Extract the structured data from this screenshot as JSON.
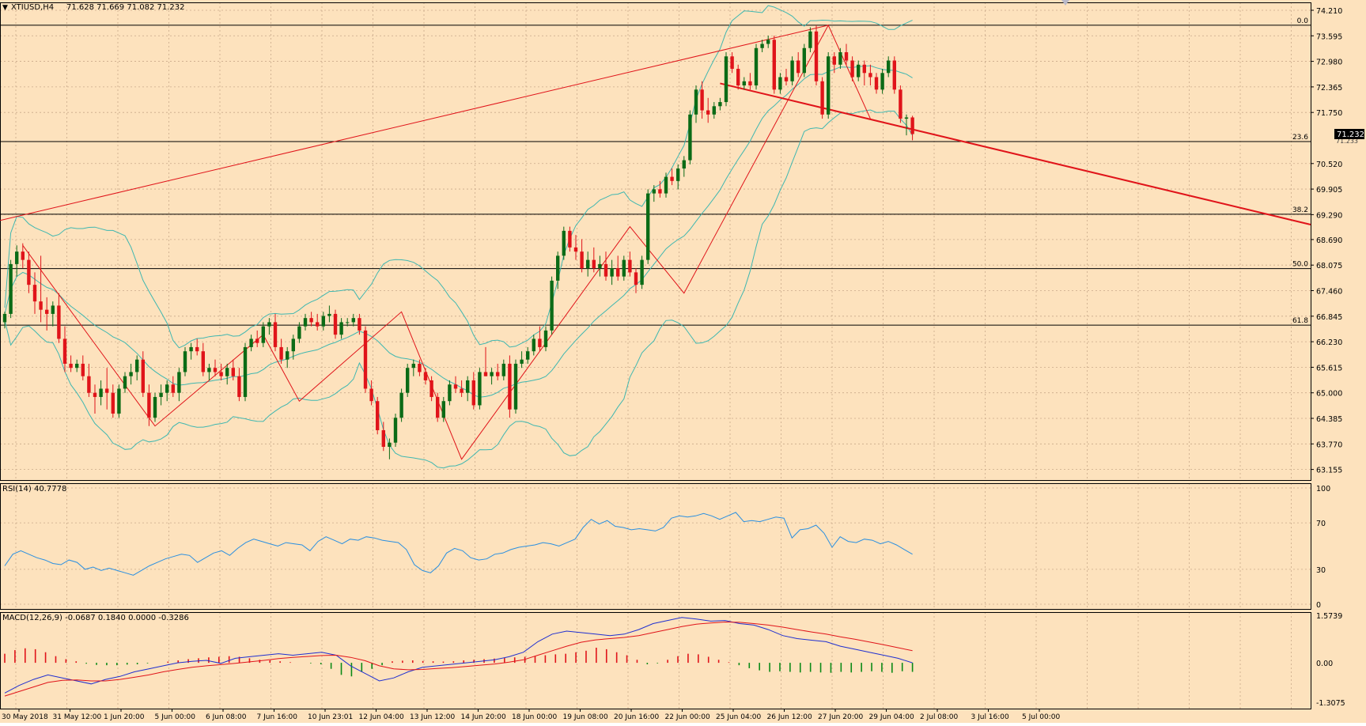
{
  "colors": {
    "background": "#fde2bd",
    "grid": "#c9a98a",
    "frame": "#000000",
    "bull_candle": "#0b6b16",
    "bear_candle": "#e0141a",
    "bollinger": "#3fb7b0",
    "zigzag": "#e0141a",
    "trendline": "#e0141a",
    "fib_line": "#000000",
    "rsi_line": "#2a8fe0",
    "macd_line": "#1f2fd0",
    "signal_line": "#e0141a",
    "hist_pos": "#e0141a",
    "hist_neg": "#0b8a16",
    "price_label_bg": "#000000",
    "price_label_text": "#ffffff"
  },
  "header": {
    "menu_arrow": "▼",
    "symbol_label": "XTIUSD,H4",
    "ohlc_label": "71.628 71.669 71.082 71.232"
  },
  "current_price": {
    "label": "71.232",
    "value": 71.232,
    "ghost_label": "71.233"
  },
  "price_axis": {
    "labels": [
      "74.210",
      "73.595",
      "72.980",
      "72.365",
      "71.750",
      "70.520",
      "69.905",
      "69.290",
      "68.690",
      "68.075",
      "67.460",
      "66.845",
      "66.230",
      "65.615",
      "65.000",
      "64.385",
      "63.770",
      "63.155"
    ],
    "values": [
      74.21,
      73.595,
      72.98,
      72.365,
      71.75,
      70.52,
      69.905,
      69.29,
      68.69,
      68.075,
      67.46,
      66.845,
      66.23,
      65.615,
      65.0,
      64.385,
      63.77,
      63.155
    ]
  },
  "fib_levels": [
    {
      "label": "0.0",
      "price": 73.85
    },
    {
      "label": "23.6",
      "price": 71.05
    },
    {
      "label": "38.2",
      "price": 69.3
    },
    {
      "label": "50.0",
      "price": 67.99
    },
    {
      "label": "61.8",
      "price": 66.63
    }
  ],
  "time_axis": {
    "labels": [
      "30 May 2018",
      "31 May 12:00",
      "1 Jun 20:00",
      "5 Jun 00:00",
      "6 Jun 08:00",
      "7 Jun 16:00",
      "10 Jun 23:01",
      "12 Jun 04:00",
      "13 Jun 12:00",
      "14 Jun 20:00",
      "18 Jun 00:00",
      "19 Jun 08:00",
      "20 Jun 16:00",
      "22 Jun 00:00",
      "25 Jun 04:00",
      "26 Jun 12:00",
      "27 Jun 20:00",
      "29 Jun 04:00",
      "2 Jul 08:00",
      "3 Jul 16:00",
      "5 Jul 00:00"
    ]
  },
  "rsi": {
    "label": "RSI(14) 40.7778",
    "axis_labels": [
      "100",
      "70",
      "30",
      "0"
    ],
    "axis_values": [
      100,
      70,
      30,
      0
    ],
    "series": [
      33,
      43,
      46,
      43,
      40,
      38,
      35,
      34,
      38,
      36,
      30,
      32,
      29,
      31,
      29,
      27,
      25,
      29,
      33,
      36,
      39,
      41,
      43,
      42,
      36,
      40,
      44,
      46,
      42,
      48,
      53,
      56,
      54,
      52,
      50,
      53,
      52,
      51,
      46,
      54,
      58,
      55,
      52,
      56,
      55,
      58,
      57,
      55,
      54,
      53,
      47,
      34,
      29,
      27,
      33,
      44,
      48,
      46,
      40,
      38,
      39,
      43,
      44,
      47,
      49,
      50,
      51,
      53,
      52,
      50,
      53,
      56,
      66,
      73,
      69,
      72,
      67,
      66,
      64,
      65,
      64,
      63,
      66,
      74,
      76,
      75,
      76,
      78,
      76,
      73,
      76,
      79,
      71,
      72,
      71,
      73,
      75,
      74,
      57,
      64,
      65,
      68,
      61,
      49,
      58,
      54,
      53,
      56,
      55,
      52,
      54,
      51,
      47,
      43
    ]
  },
  "macd": {
    "label": "MACD(12,26,9) -0.0687 0.1840 0.0000 -0.3286",
    "axis_labels": [
      "1.5739",
      "0.00",
      "-1.3075"
    ],
    "axis_values": [
      1.5739,
      0.0,
      -1.3075
    ],
    "macd_series": [
      -1.0,
      -0.75,
      -0.55,
      -0.4,
      -0.5,
      -0.6,
      -0.7,
      -0.55,
      -0.45,
      -0.3,
      -0.2,
      -0.1,
      0.0,
      0.05,
      0.08,
      -0.02,
      0.15,
      0.2,
      0.25,
      0.3,
      0.25,
      0.3,
      0.35,
      0.25,
      -0.1,
      -0.35,
      -0.6,
      -0.5,
      -0.3,
      -0.15,
      -0.1,
      -0.05,
      0.0,
      0.05,
      0.1,
      0.2,
      0.35,
      0.7,
      0.95,
      1.05,
      1.0,
      0.95,
      0.9,
      0.95,
      1.1,
      1.3,
      1.4,
      1.5,
      1.45,
      1.38,
      1.4,
      1.3,
      1.25,
      1.1,
      0.9,
      0.8,
      0.75,
      0.7,
      0.55,
      0.45,
      0.35,
      0.25,
      0.15,
      0.0
    ],
    "signal_series": [
      -1.1,
      -0.95,
      -0.8,
      -0.65,
      -0.58,
      -0.57,
      -0.6,
      -0.6,
      -0.55,
      -0.48,
      -0.4,
      -0.3,
      -0.22,
      -0.15,
      -0.1,
      -0.06,
      -0.02,
      0.03,
      0.08,
      0.14,
      0.18,
      0.21,
      0.24,
      0.25,
      0.18,
      0.07,
      -0.1,
      -0.2,
      -0.23,
      -0.22,
      -0.19,
      -0.16,
      -0.12,
      -0.08,
      -0.04,
      0.02,
      0.1,
      0.25,
      0.4,
      0.55,
      0.68,
      0.76,
      0.8,
      0.84,
      0.9,
      1.0,
      1.1,
      1.2,
      1.28,
      1.32,
      1.35,
      1.34,
      1.3,
      1.25,
      1.18,
      1.1,
      1.02,
      0.95,
      0.86,
      0.78,
      0.69,
      0.6,
      0.5,
      0.4
    ],
    "hist_series": [
      0.3,
      0.42,
      0.48,
      0.45,
      0.35,
      0.22,
      0.12,
      0.05,
      -0.03,
      -0.07,
      -0.08,
      -0.08,
      -0.06,
      -0.05,
      -0.02,
      0.0,
      0.04,
      0.08,
      0.12,
      0.15,
      0.18,
      0.2,
      0.22,
      0.2,
      0.15,
      0.1,
      0.08,
      0.05,
      0.02,
      0.0,
      -0.02,
      -0.05,
      -0.2,
      -0.4,
      -0.45,
      -0.3,
      -0.2,
      -0.08,
      0.05,
      0.07,
      0.08,
      0.06,
      0.05,
      0.04,
      0.05,
      0.08,
      0.1,
      0.12,
      0.14,
      0.16,
      0.18,
      0.2,
      0.22,
      0.25,
      0.28,
      0.3,
      0.35,
      0.4,
      0.5,
      0.45,
      0.35,
      0.25,
      0.1,
      -0.05,
      -0.02,
      0.1,
      0.22,
      0.3,
      0.28,
      0.2,
      0.1,
      0.02,
      -0.08,
      -0.18,
      -0.25,
      -0.3,
      -0.28,
      -0.3,
      -0.32,
      -0.3,
      -0.32,
      -0.33,
      -0.3,
      -0.32,
      -0.3,
      -0.28,
      -0.3,
      -0.33,
      -0.28,
      -0.3
    ]
  },
  "chart_data": {
    "type": "candlestick",
    "title": "XTIUSD,H4",
    "ylim": [
      62.9,
      74.4
    ],
    "ohlc": [
      [
        66.7,
        66.95,
        66.55,
        66.9
      ],
      [
        66.9,
        68.2,
        66.8,
        68.1
      ],
      [
        68.1,
        68.55,
        67.8,
        68.4
      ],
      [
        68.4,
        68.6,
        68.0,
        68.2
      ],
      [
        68.2,
        68.4,
        67.4,
        67.6
      ],
      [
        67.6,
        67.9,
        66.9,
        67.2
      ],
      [
        67.2,
        68.3,
        66.7,
        67.0
      ],
      [
        67.0,
        67.3,
        66.5,
        66.9
      ],
      [
        66.9,
        67.2,
        66.6,
        67.1
      ],
      [
        67.1,
        67.4,
        66.2,
        66.3
      ],
      [
        66.3,
        66.6,
        65.5,
        65.7
      ],
      [
        65.7,
        65.9,
        65.5,
        65.6
      ],
      [
        65.6,
        65.8,
        65.5,
        65.7
      ],
      [
        65.7,
        65.9,
        65.3,
        65.4
      ],
      [
        65.4,
        65.7,
        64.9,
        65.0
      ],
      [
        65.0,
        65.2,
        64.5,
        64.9
      ],
      [
        64.9,
        65.3,
        64.7,
        65.1
      ],
      [
        65.1,
        65.6,
        64.6,
        65.0
      ],
      [
        65.0,
        65.2,
        64.4,
        64.5
      ],
      [
        64.5,
        65.2,
        64.4,
        65.1
      ],
      [
        65.1,
        65.5,
        65.0,
        65.4
      ],
      [
        65.4,
        65.7,
        65.2,
        65.5
      ],
      [
        65.5,
        65.9,
        65.3,
        65.8
      ],
      [
        65.8,
        66.0,
        64.9,
        65.0
      ],
      [
        65.0,
        65.2,
        64.2,
        64.4
      ],
      [
        64.4,
        65.0,
        64.3,
        64.9
      ],
      [
        64.9,
        65.2,
        64.7,
        65.0
      ],
      [
        65.0,
        65.3,
        64.8,
        65.2
      ],
      [
        65.2,
        65.4,
        64.9,
        65.0
      ],
      [
        65.0,
        65.6,
        64.8,
        65.5
      ],
      [
        65.5,
        66.1,
        65.4,
        66.0
      ],
      [
        66.0,
        66.2,
        65.8,
        66.1
      ],
      [
        66.1,
        66.3,
        65.9,
        66.0
      ],
      [
        66.0,
        66.2,
        65.4,
        65.5
      ],
      [
        65.5,
        65.7,
        65.3,
        65.6
      ],
      [
        65.6,
        65.8,
        65.4,
        65.5
      ],
      [
        65.5,
        65.7,
        65.3,
        65.4
      ],
      [
        65.4,
        65.7,
        65.2,
        65.6
      ],
      [
        65.6,
        65.8,
        65.3,
        65.4
      ],
      [
        65.4,
        65.6,
        64.8,
        64.9
      ],
      [
        64.9,
        66.2,
        64.8,
        66.1
      ],
      [
        66.1,
        66.4,
        66.0,
        66.3
      ],
      [
        66.3,
        66.5,
        66.1,
        66.2
      ],
      [
        66.2,
        66.7,
        66.1,
        66.6
      ],
      [
        66.6,
        66.8,
        66.4,
        66.7
      ],
      [
        66.7,
        66.9,
        66.0,
        66.1
      ],
      [
        66.1,
        66.3,
        65.7,
        65.8
      ],
      [
        65.8,
        66.1,
        65.6,
        66.0
      ],
      [
        66.0,
        66.4,
        65.8,
        66.3
      ],
      [
        66.3,
        66.7,
        66.2,
        66.6
      ],
      [
        66.6,
        66.9,
        66.5,
        66.8
      ],
      [
        66.8,
        66.95,
        66.6,
        66.7
      ],
      [
        66.7,
        66.9,
        66.5,
        66.6
      ],
      [
        66.6,
        66.95,
        66.5,
        66.85
      ],
      [
        66.85,
        67.1,
        66.7,
        66.9
      ],
      [
        66.9,
        67.0,
        66.3,
        66.4
      ],
      [
        66.4,
        66.8,
        66.3,
        66.7
      ],
      [
        66.7,
        66.8,
        66.6,
        66.7
      ],
      [
        66.7,
        66.9,
        66.6,
        66.8
      ],
      [
        66.8,
        66.9,
        66.4,
        66.5
      ],
      [
        66.5,
        66.6,
        65.0,
        65.1
      ],
      [
        65.1,
        65.3,
        64.7,
        64.8
      ],
      [
        64.8,
        64.9,
        64.0,
        64.1
      ],
      [
        64.1,
        64.3,
        63.6,
        63.7
      ],
      [
        63.7,
        63.9,
        63.4,
        63.8
      ],
      [
        63.8,
        64.5,
        63.7,
        64.4
      ],
      [
        64.4,
        65.1,
        64.3,
        65.0
      ],
      [
        65.0,
        65.7,
        64.9,
        65.6
      ],
      [
        65.6,
        65.8,
        65.4,
        65.7
      ],
      [
        65.7,
        65.8,
        65.4,
        65.5
      ],
      [
        65.5,
        65.6,
        65.2,
        65.3
      ],
      [
        65.3,
        65.4,
        64.8,
        64.9
      ],
      [
        64.9,
        65.0,
        64.3,
        64.4
      ],
      [
        64.4,
        64.9,
        64.3,
        64.8
      ],
      [
        64.8,
        65.3,
        64.7,
        65.2
      ],
      [
        65.2,
        65.4,
        65.0,
        65.1
      ],
      [
        65.1,
        65.3,
        64.9,
        65.0
      ],
      [
        65.0,
        65.4,
        64.8,
        65.3
      ],
      [
        65.3,
        65.5,
        64.6,
        64.7
      ],
      [
        64.7,
        65.6,
        64.6,
        65.5
      ],
      [
        65.5,
        66.1,
        65.4,
        65.4
      ],
      [
        65.4,
        65.6,
        65.2,
        65.5
      ],
      [
        65.5,
        65.7,
        65.3,
        65.4
      ],
      [
        65.4,
        65.8,
        65.3,
        65.7
      ],
      [
        65.7,
        65.9,
        64.4,
        64.6
      ],
      [
        64.6,
        65.8,
        64.5,
        65.7
      ],
      [
        65.7,
        66.0,
        65.6,
        65.8
      ],
      [
        65.8,
        66.1,
        65.7,
        66.0
      ],
      [
        66.0,
        66.4,
        65.9,
        66.3
      ],
      [
        66.3,
        66.6,
        66.0,
        66.1
      ],
      [
        66.1,
        66.6,
        66.0,
        66.5
      ],
      [
        66.5,
        67.8,
        66.4,
        67.7
      ],
      [
        67.7,
        68.4,
        67.5,
        68.3
      ],
      [
        68.3,
        69.0,
        68.2,
        68.9
      ],
      [
        68.9,
        69.0,
        68.4,
        68.5
      ],
      [
        68.5,
        68.8,
        68.2,
        68.4
      ],
      [
        68.4,
        68.7,
        67.9,
        68.0
      ],
      [
        68.0,
        68.4,
        67.8,
        68.2
      ],
      [
        68.2,
        68.5,
        67.9,
        68.0
      ],
      [
        68.0,
        68.3,
        67.8,
        68.1
      ],
      [
        68.1,
        68.4,
        67.7,
        67.8
      ],
      [
        67.8,
        68.2,
        67.6,
        68.0
      ],
      [
        68.0,
        68.3,
        67.7,
        67.8
      ],
      [
        67.8,
        68.3,
        67.7,
        68.2
      ],
      [
        68.2,
        68.4,
        67.8,
        67.9
      ],
      [
        67.9,
        68.0,
        67.4,
        67.6
      ],
      [
        67.6,
        68.3,
        67.5,
        68.2
      ],
      [
        68.2,
        69.9,
        68.1,
        69.8
      ],
      [
        69.8,
        70.0,
        69.6,
        69.9
      ],
      [
        69.9,
        70.1,
        69.7,
        69.8
      ],
      [
        69.8,
        70.3,
        69.7,
        70.2
      ],
      [
        70.2,
        70.4,
        70.0,
        70.1
      ],
      [
        70.1,
        70.5,
        69.9,
        70.4
      ],
      [
        70.4,
        70.7,
        70.2,
        70.6
      ],
      [
        70.6,
        71.8,
        70.5,
        71.7
      ],
      [
        71.7,
        72.4,
        71.5,
        72.3
      ]
    ]
  }
}
